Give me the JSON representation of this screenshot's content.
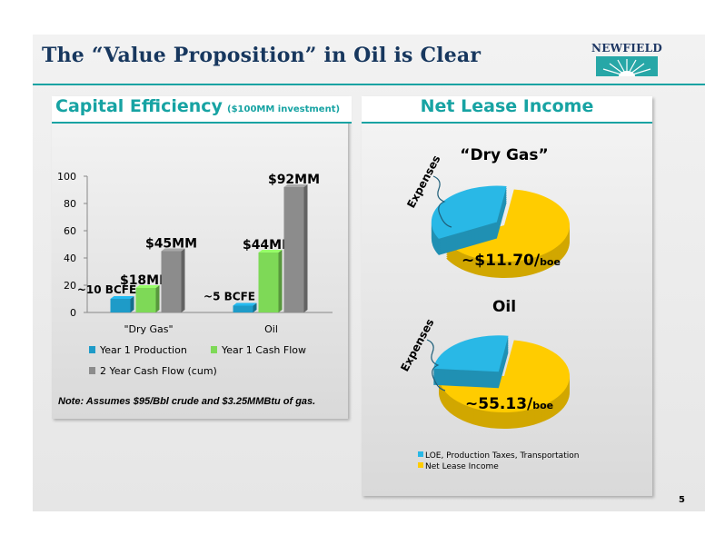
{
  "slide": {
    "title": "The “Value Proposition” in Oil is Clear",
    "logo_text": "NEWFIELD",
    "page_number": "5",
    "note": "Note: Assumes $95/Bbl crude and $3.25MMBtu of gas."
  },
  "left_panel": {
    "heading": "Capital Efficiency",
    "subheading": "($100MM investment)"
  },
  "right_panel": {
    "heading": "Net Lease Income"
  },
  "colors": {
    "teal": "#17a3a3",
    "navy": "#17375e",
    "production": "#1e9bc8",
    "cashflow": "#7ed957",
    "twoyear": "#8c8c8c",
    "expenses": "#29b8e6",
    "net_income": "#ffcc00"
  },
  "chart_data": [
    {
      "type": "bar",
      "categories": [
        "\"Dry Gas\"",
        "Oil"
      ],
      "ylim": [
        0,
        100
      ],
      "yticks": [
        "0",
        "20",
        "40",
        "60",
        "80",
        "100"
      ],
      "grid": false,
      "legend_position": "bottom",
      "series": [
        {
          "name": "Year 1 Production",
          "values": [
            10,
            5
          ],
          "labels": [
            "~10 BCFE",
            "~5 BCFE"
          ]
        },
        {
          "name": "Year 1 Cash Flow",
          "values": [
            18,
            44
          ],
          "labels": [
            "$18MM",
            "$44MM"
          ]
        },
        {
          "name": "2 Year Cash Flow (cum)",
          "values": [
            45,
            92
          ],
          "labels": [
            "$45MM",
            "$92MM"
          ]
        }
      ]
    },
    {
      "type": "pie",
      "title": "“Dry Gas”",
      "slices": [
        {
          "name": "LOE, Production Taxes, Transportation",
          "value": 0.35
        },
        {
          "name": "Net Lease Income",
          "value": 0.65
        }
      ],
      "annotations": {
        "expenses": "Expenses",
        "income_value": "~$11.70/",
        "income_unit": "boe"
      }
    },
    {
      "type": "pie",
      "title": "Oil",
      "slices": [
        {
          "name": "LOE, Production Taxes, Transportation",
          "value": 0.26
        },
        {
          "name": "Net Lease Income",
          "value": 0.74
        }
      ],
      "annotations": {
        "expenses": "Expenses",
        "income_value": "~55.13/",
        "income_unit": "boe"
      },
      "legend": [
        "LOE, Production Taxes, Transportation",
        "Net Lease Income"
      ]
    }
  ]
}
